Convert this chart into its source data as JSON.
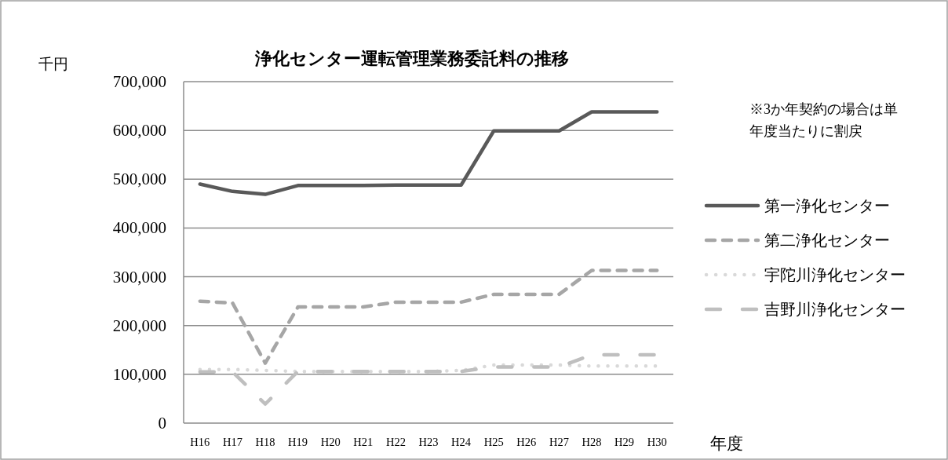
{
  "chart_data": {
    "type": "line",
    "title": "浄化センター運転管理業務委託料の推移",
    "ylabel": "千円",
    "xlabel": "年度",
    "categories": [
      "H16",
      "H17",
      "H18",
      "H19",
      "H20",
      "H21",
      "H22",
      "H23",
      "H24",
      "H25",
      "H26",
      "H27",
      "H28",
      "H29",
      "H30"
    ],
    "ylim": [
      0,
      700000
    ],
    "yticks": [
      {
        "value": 0,
        "label": "0"
      },
      {
        "value": 100000,
        "label": "100,000"
      },
      {
        "value": 200000,
        "label": "200,000"
      },
      {
        "value": 300000,
        "label": "300,000"
      },
      {
        "value": 400000,
        "label": "400,000"
      },
      {
        "value": 500000,
        "label": "500,000"
      },
      {
        "value": 600000,
        "label": "600,000"
      },
      {
        "value": 700000,
        "label": "700,000"
      }
    ],
    "grid": "y",
    "legend": "right",
    "marker": "none",
    "annotations": [
      "※3か年契約の場合は単年度当たりに割戻"
    ],
    "series": [
      {
        "name": "第一浄化センター",
        "color": "#595959",
        "line_style": "solid",
        "values": [
          490000,
          475000,
          469000,
          487000,
          487000,
          487000,
          488000,
          488000,
          488000,
          599000,
          599000,
          599000,
          638000,
          638000,
          638000
        ]
      },
      {
        "name": "第二浄化センター",
        "color": "#a6a6a6",
        "line_style": "dashed",
        "values": [
          250000,
          246000,
          123000,
          238000,
          238000,
          238000,
          248000,
          248000,
          248000,
          264000,
          264000,
          264000,
          313000,
          313000,
          313000
        ]
      },
      {
        "name": "宇陀川浄化センター",
        "color": "#d9d9d9",
        "line_style": "dotted",
        "values": [
          110000,
          110000,
          108000,
          106000,
          106000,
          106000,
          106000,
          106000,
          108000,
          119000,
          119000,
          119000,
          117000,
          117000,
          117000
        ]
      },
      {
        "name": "吉野川浄化センター",
        "color": "#bfbfbf",
        "line_style": "longdash",
        "values": [
          105000,
          105000,
          39000,
          106000,
          106000,
          106000,
          106000,
          106000,
          106000,
          115000,
          115000,
          115000,
          140000,
          140000,
          140000
        ]
      }
    ]
  }
}
